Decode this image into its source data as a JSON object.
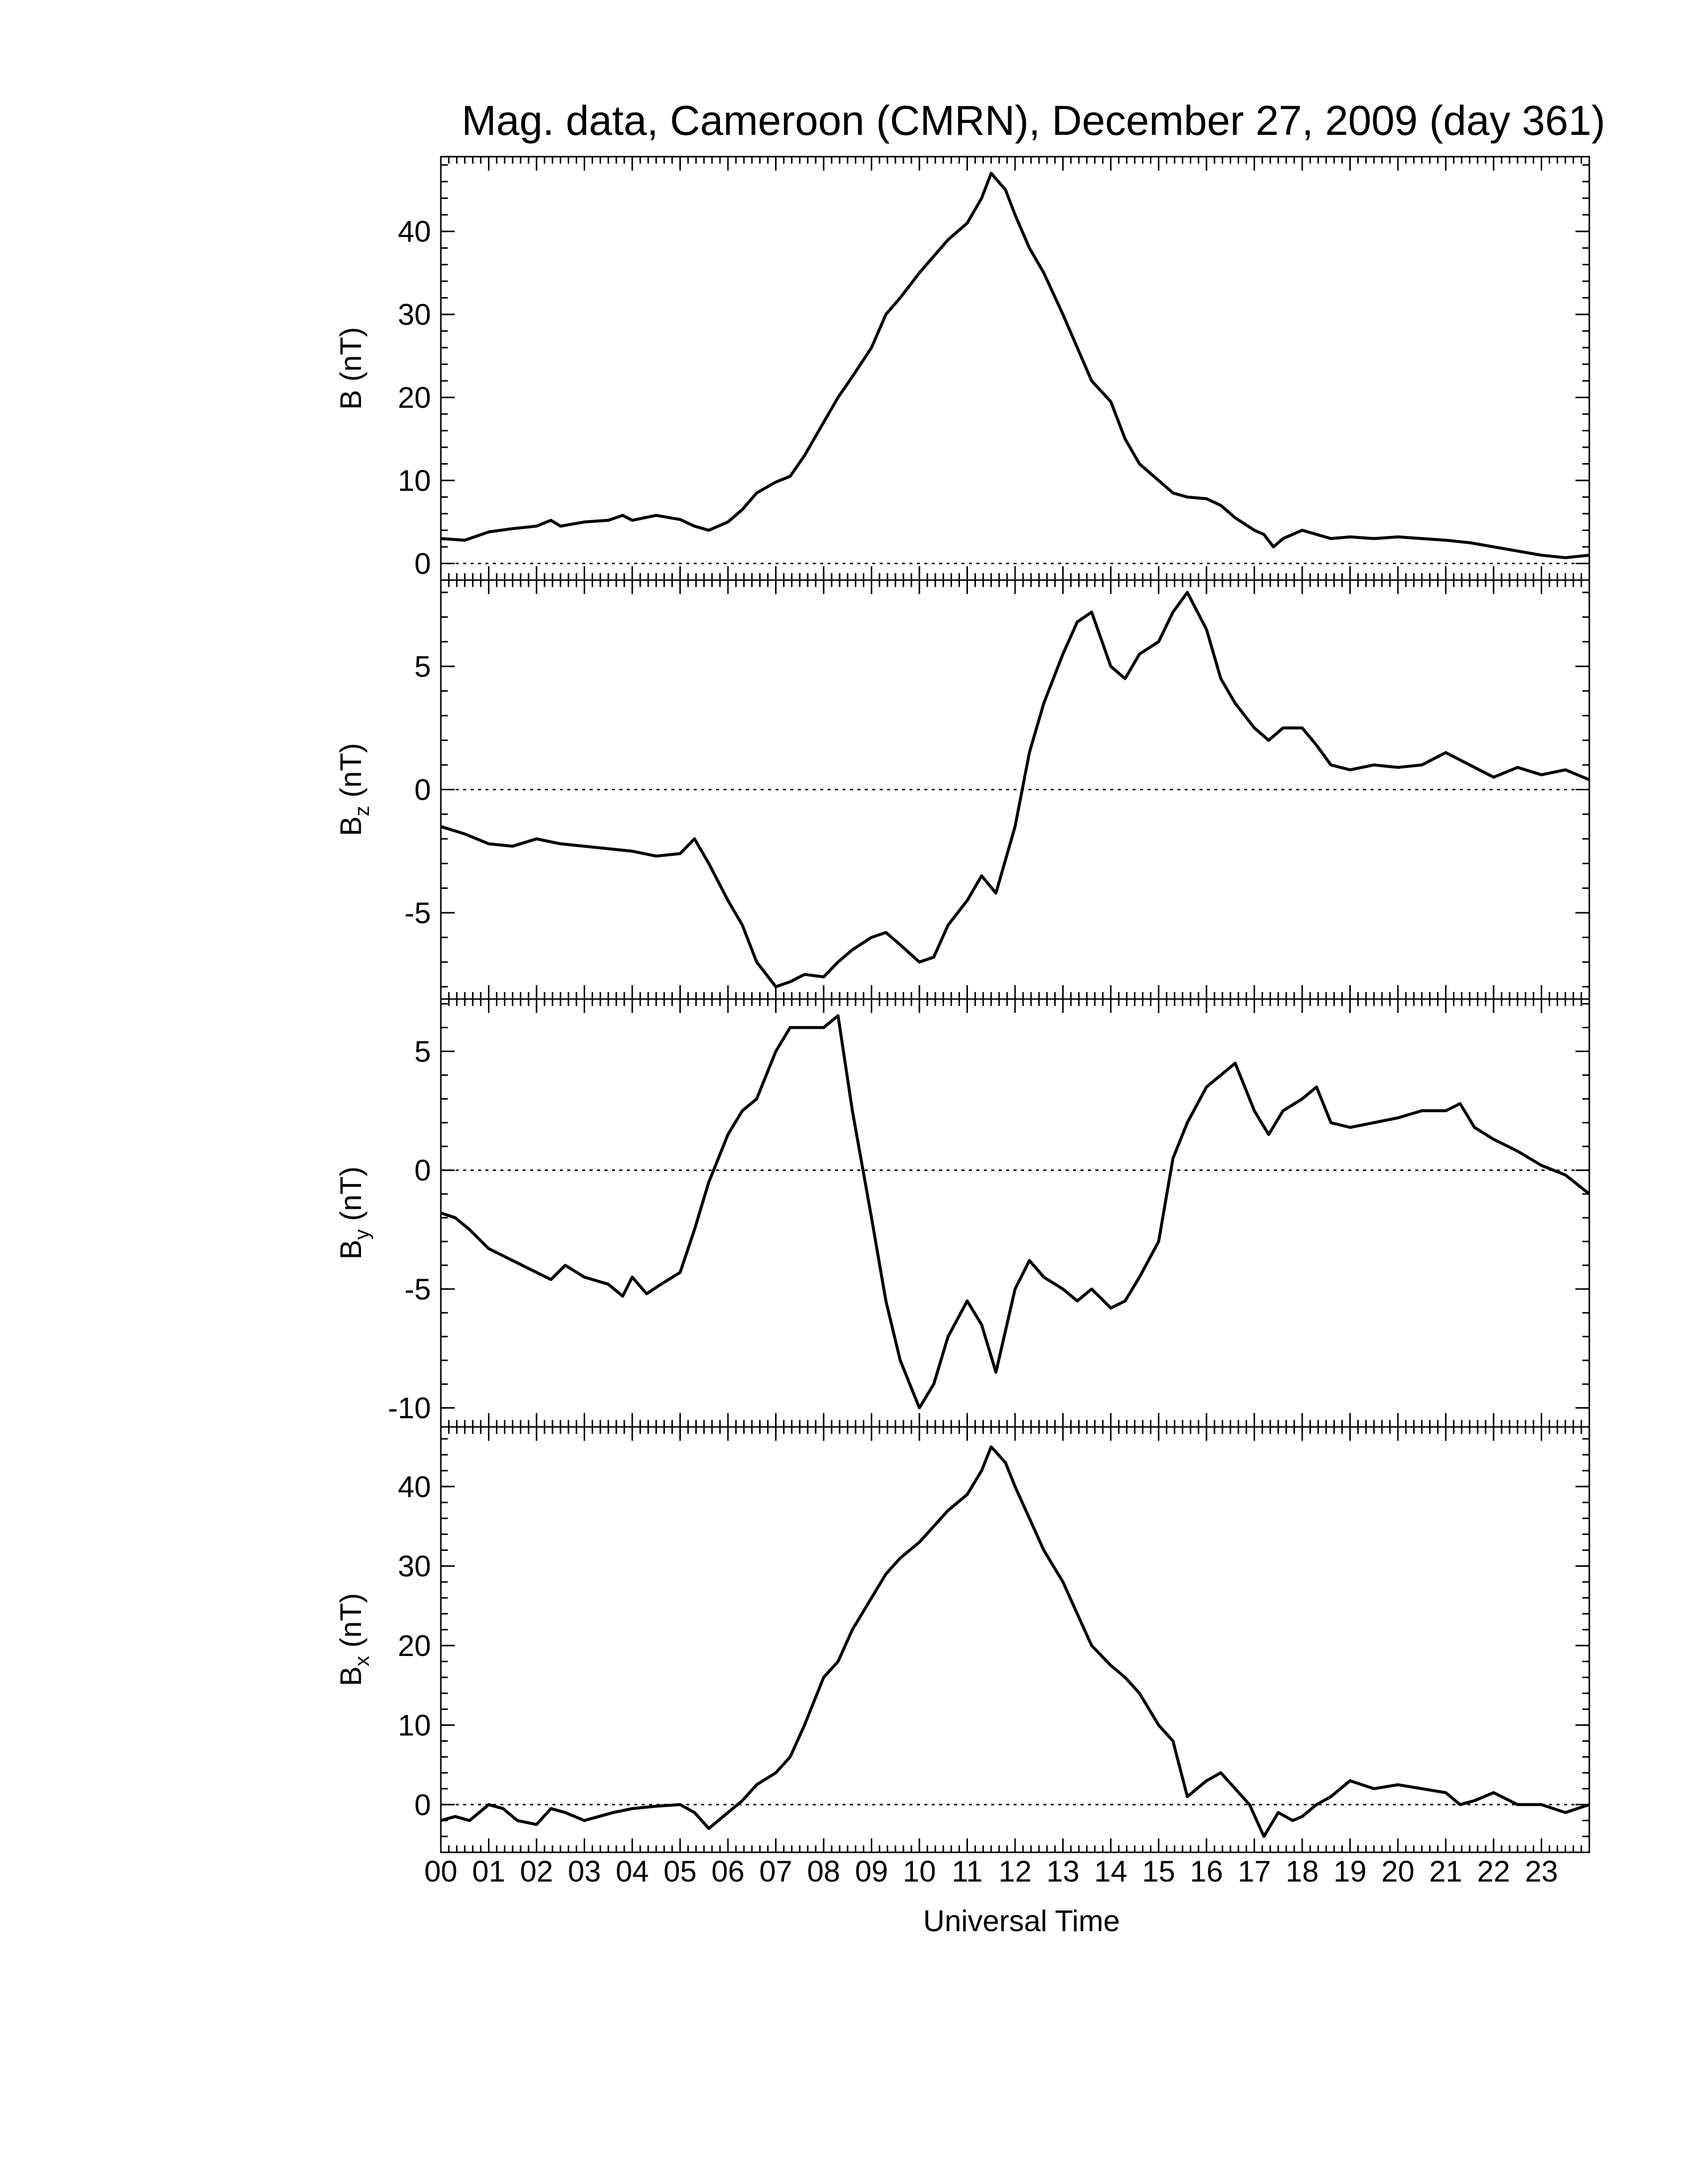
{
  "chart_data": {
    "type": "line",
    "title": "Mag. data, Cameroon (CMRN), December 27, 2009 (day 361)",
    "xlabel": "Universal Time",
    "x_unit": "hour (UT)",
    "xlim": [
      0,
      24
    ],
    "x_tick_labels": [
      "00",
      "01",
      "02",
      "03",
      "04",
      "05",
      "06",
      "07",
      "08",
      "09",
      "10",
      "11",
      "12",
      "13",
      "14",
      "15",
      "16",
      "17",
      "18",
      "19",
      "20",
      "21",
      "22",
      "23"
    ],
    "panels": [
      {
        "name": "B",
        "ylabel_main": "B",
        "ylabel_sub": "",
        "ylabel_unit": "(nT)",
        "ylim": [
          -2,
          49
        ],
        "yticks": [
          0,
          10,
          20,
          30,
          40
        ],
        "zero_line": true,
        "x": [
          0,
          0.5,
          1,
          1.5,
          2,
          2.3,
          2.5,
          3,
          3.5,
          3.8,
          4,
          4.5,
          5,
          5.3,
          5.6,
          6,
          6.3,
          6.6,
          7,
          7.3,
          7.6,
          8,
          8.3,
          8.6,
          9,
          9.3,
          9.6,
          10,
          10.3,
          10.6,
          11,
          11.3,
          11.5,
          11.8,
          12,
          12.3,
          12.6,
          13,
          13.3,
          13.6,
          14,
          14.3,
          14.6,
          15,
          15.3,
          15.6,
          16,
          16.3,
          16.6,
          17,
          17.2,
          17.4,
          17.6,
          18,
          18.3,
          18.6,
          19,
          19.5,
          20,
          20.5,
          21,
          21.5,
          22,
          22.5,
          23,
          23.5,
          24
        ],
        "values": [
          3,
          2.8,
          3.8,
          4.2,
          4.5,
          5.2,
          4.5,
          5,
          5.2,
          5.8,
          5.2,
          5.8,
          5.3,
          4.5,
          4,
          5,
          6.5,
          8.5,
          9.8,
          10.5,
          13,
          17,
          20,
          22.5,
          26,
          30,
          32,
          35,
          37,
          39,
          41,
          44,
          47,
          45,
          42,
          38,
          35,
          30,
          26,
          22,
          19.5,
          15,
          12,
          10,
          8.5,
          8,
          7.8,
          7,
          5.5,
          4,
          3.5,
          2,
          3,
          4,
          3.5,
          3,
          3.2,
          3,
          3.2,
          3,
          2.8,
          2.5,
          2,
          1.5,
          1,
          0.7,
          1
        ],
        "color": "#000000"
      },
      {
        "name": "Bz",
        "ylabel_main": "B",
        "ylabel_sub": "z",
        "ylabel_unit": "(nT)",
        "ylim": [
          -8.5,
          8.5
        ],
        "yticks": [
          -5,
          0,
          5
        ],
        "zero_line": true,
        "x": [
          0,
          0.5,
          1,
          1.5,
          2,
          2.5,
          3,
          3.5,
          4,
          4.5,
          5,
          5.3,
          5.6,
          6,
          6.3,
          6.6,
          7,
          7.3,
          7.6,
          8,
          8.3,
          8.6,
          9,
          9.3,
          9.6,
          10,
          10.3,
          10.6,
          11,
          11.3,
          11.6,
          12,
          12.3,
          12.6,
          13,
          13.3,
          13.6,
          14,
          14.3,
          14.6,
          15,
          15.3,
          15.6,
          16,
          16.3,
          16.6,
          17,
          17.3,
          17.6,
          18,
          18.3,
          18.6,
          19,
          19.5,
          20,
          20.5,
          21,
          21.5,
          22,
          22.5,
          23,
          23.5,
          24
        ],
        "values": [
          -1.5,
          -1.8,
          -2.2,
          -2.3,
          -2,
          -2.2,
          -2.3,
          -2.4,
          -2.5,
          -2.7,
          -2.6,
          -2,
          -3,
          -4.5,
          -5.5,
          -7,
          -8,
          -7.8,
          -7.5,
          -7.6,
          -7,
          -6.5,
          -6,
          -5.8,
          -6.3,
          -7,
          -6.8,
          -5.5,
          -4.5,
          -3.5,
          -4.2,
          -1.5,
          1.5,
          3.5,
          5.5,
          6.8,
          7.2,
          5,
          4.5,
          5.5,
          6,
          7.2,
          8,
          6.5,
          4.5,
          3.5,
          2.5,
          2,
          2.5,
          2.5,
          1.8,
          1,
          0.8,
          1,
          0.9,
          1,
          1.5,
          1,
          0.5,
          0.9,
          0.6,
          0.8,
          0.4
        ],
        "color": "#000000"
      },
      {
        "name": "By",
        "ylabel_main": "B",
        "ylabel_sub": "y",
        "ylabel_unit": "(nT)",
        "ylim": [
          -10.8,
          7.2
        ],
        "yticks": [
          -10,
          -5,
          0,
          5
        ],
        "zero_line": true,
        "x": [
          0,
          0.3,
          0.6,
          1,
          1.5,
          2,
          2.3,
          2.6,
          3,
          3.5,
          3.8,
          4,
          4.3,
          4.6,
          5,
          5.3,
          5.6,
          6,
          6.3,
          6.6,
          7,
          7.3,
          7.6,
          8,
          8.3,
          8.6,
          9,
          9.3,
          9.6,
          10,
          10.3,
          10.6,
          11,
          11.3,
          11.6,
          12,
          12.3,
          12.6,
          13,
          13.3,
          13.6,
          14,
          14.3,
          14.6,
          15,
          15.3,
          15.6,
          16,
          16.3,
          16.6,
          17,
          17.3,
          17.6,
          18,
          18.3,
          18.6,
          19,
          19.5,
          20,
          20.5,
          21,
          21.3,
          21.6,
          22,
          22.5,
          23,
          23.5,
          24
        ],
        "values": [
          -1.8,
          -2,
          -2.5,
          -3.3,
          -3.8,
          -4.3,
          -4.6,
          -4,
          -4.5,
          -4.8,
          -5.3,
          -4.5,
          -5.2,
          -4.8,
          -4.3,
          -2.5,
          -0.5,
          1.5,
          2.5,
          3,
          5,
          6,
          6,
          6,
          6.5,
          2.5,
          -2,
          -5.5,
          -8,
          -10,
          -9,
          -7,
          -5.5,
          -6.5,
          -8.5,
          -5,
          -3.8,
          -4.5,
          -5,
          -5.5,
          -5,
          -5.8,
          -5.5,
          -4.5,
          -3,
          0.5,
          2,
          3.5,
          4,
          4.5,
          2.5,
          1.5,
          2.5,
          3,
          3.5,
          2,
          1.8,
          2,
          2.2,
          2.5,
          2.5,
          2.8,
          1.8,
          1.3,
          0.8,
          0.2,
          -0.2,
          -1
        ],
        "color": "#000000"
      },
      {
        "name": "Bx",
        "ylabel_main": "B",
        "ylabel_sub": "x",
        "ylabel_unit": "(nT)",
        "ylim": [
          -6,
          47.5
        ],
        "yticks": [
          0,
          10,
          20,
          30,
          40
        ],
        "zero_line": true,
        "x": [
          0,
          0.3,
          0.6,
          1,
          1.3,
          1.6,
          2,
          2.3,
          2.6,
          3,
          3.3,
          3.6,
          4,
          4.5,
          5,
          5.3,
          5.6,
          6,
          6.3,
          6.6,
          7,
          7.3,
          7.6,
          8,
          8.3,
          8.6,
          9,
          9.3,
          9.6,
          10,
          10.3,
          10.6,
          11,
          11.3,
          11.5,
          11.8,
          12,
          12.3,
          12.6,
          13,
          13.3,
          13.6,
          14,
          14.3,
          14.6,
          15,
          15.3,
          15.6,
          16,
          16.3,
          16.6,
          16.9,
          17.2,
          17.5,
          17.8,
          18,
          18.3,
          18.6,
          19,
          19.5,
          20,
          20.5,
          21,
          21.3,
          21.6,
          22,
          22.5,
          23,
          23.5,
          24
        ],
        "values": [
          -2,
          -1.5,
          -2,
          0,
          -0.5,
          -2,
          -2.5,
          -0.5,
          -1,
          -2,
          -1.5,
          -1,
          -0.5,
          -0.2,
          0,
          -1,
          -3,
          -1,
          0.5,
          2.5,
          4,
          6,
          10,
          16,
          18,
          22,
          26,
          29,
          31,
          33,
          35,
          37,
          39,
          42,
          45,
          43,
          40,
          36,
          32,
          28,
          24,
          20,
          17.5,
          16,
          14,
          10,
          8,
          1,
          3,
          4,
          2,
          0,
          -4,
          -1,
          -2,
          -1.5,
          0,
          1,
          3,
          2,
          2.5,
          2,
          1.5,
          0,
          0.5,
          1.5,
          0,
          0,
          -1,
          0
        ],
        "color": "#000000"
      }
    ],
    "grid": false,
    "legend": "none"
  }
}
